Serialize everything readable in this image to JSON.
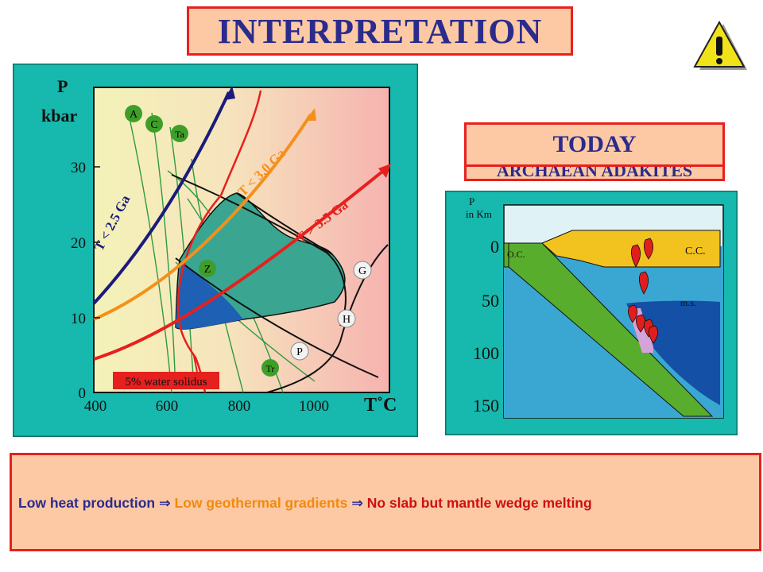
{
  "title": "INTERPRETATION",
  "warning_icon": "warning-icon",
  "left_diagram": {
    "y_axis_label_line1": "P",
    "y_axis_label_line2": "kbar",
    "x_axis_label": "T˚C",
    "y_ticks": [
      "0",
      "10",
      "20",
      "30"
    ],
    "x_ticks": [
      "400",
      "600",
      "800",
      "1000"
    ],
    "gradient_labels": [
      "T < 2.5 Ga",
      "T < 3.0 Ga",
      "T > 3.5 Ga"
    ],
    "phase_labels": [
      "A",
      "C",
      "Ta",
      "Z",
      "G",
      "H",
      "P",
      "Tr"
    ],
    "solidus_label": "5% water solidus",
    "colors": {
      "panel_bg": "#17b8ad",
      "plot_left": "#f4f2b8",
      "plot_right": "#f6b3b0",
      "blue_gradient": "#1b1b7c",
      "orange_gradient": "#f4901a",
      "red_gradient": "#e6201e",
      "melt_teal": "#3aa691",
      "melt_blue": "#1e60b4",
      "label_green": "#3f9e2a"
    }
  },
  "right_diagram": {
    "y_axis_label_line1": "P",
    "y_axis_label_line2": "in Km",
    "depth_ticks": [
      "0",
      "50",
      "100",
      "150"
    ],
    "oc_label": "O.C.",
    "cc_label": "C.C.",
    "ms_label": "m.s.",
    "colors": {
      "panel_bg": "#17b8ad",
      "sky": "#dff3f6",
      "mantle": "#3aa7d3",
      "wedge": "#1450a6",
      "crust": "#f2c21e",
      "slab": "#59ad2c",
      "melt": "#d5a2d9",
      "magma": "#e01e1e"
    }
  },
  "tab_back_label": "ARCHAEAN ADAKITES",
  "tab_front_label": "TODAY",
  "bottom_text": {
    "part1": "Low heat production",
    "part2": "Low geothermal gradients",
    "part3": "No slab but mantle wedge melting"
  }
}
